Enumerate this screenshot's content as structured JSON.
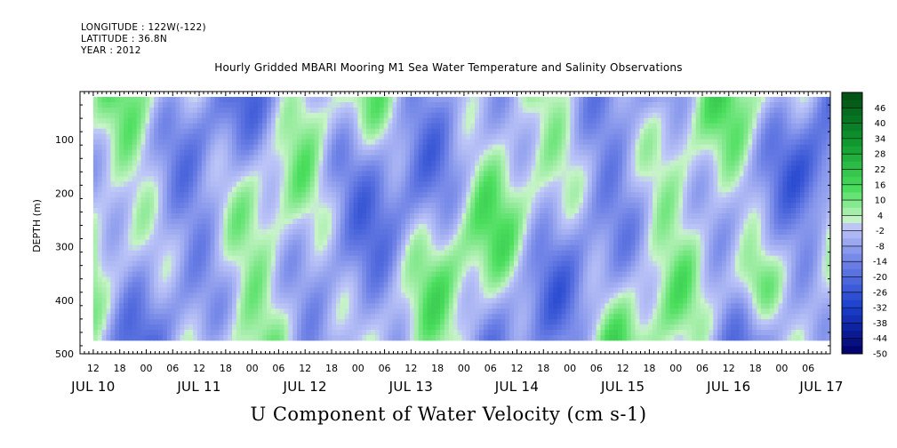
{
  "header": {
    "longitude": "LONGITUDE : 122W(-122)",
    "latitude": "LATITUDE : 36.8N",
    "year": "YEAR : 2012"
  },
  "chart_title": "Hourly Gridded MBARI Mooring M1 Sea Water Temperature and Salinity Observations",
  "main_title": "U Component of Water Velocity (cm s-1)",
  "chart_data": {
    "type": "heatmap",
    "xlabel": "",
    "ylabel": "DEPTH (m)",
    "y_ticks": [
      100,
      200,
      300,
      400,
      500
    ],
    "y_reversed": true,
    "ylim": [
      500,
      10
    ],
    "data_depth_range": [
      20,
      475
    ],
    "x_start": "2012-07-10T09:00",
    "x_end": "2012-07-17T11:00",
    "data_start": "2012-07-10T12:00",
    "data_end": "2012-07-17T11:00",
    "x_hour_labels": [
      "12",
      "18",
      "00",
      "06",
      "12",
      "18",
      "00",
      "06",
      "12",
      "18",
      "00",
      "06",
      "12",
      "18",
      "00",
      "06",
      "12",
      "18",
      "00",
      "06",
      "12",
      "18",
      "00",
      "06",
      "12",
      "18",
      "00",
      "06"
    ],
    "x_date_labels": [
      "JUL 10",
      "JUL 11",
      "JUL 12",
      "JUL 13",
      "JUL 14",
      "JUL 15",
      "JUL 16",
      "JUL 17"
    ],
    "colorbar": {
      "labels": [
        46,
        40,
        34,
        28,
        22,
        16,
        10,
        4,
        -2,
        -8,
        -14,
        -20,
        -26,
        -32,
        -38,
        -44,
        -50
      ],
      "range": [
        -50,
        52
      ],
      "colors": {
        "-50": "#000066",
        "-32": "#1a3ecc",
        "-14": "#6f82e6",
        "0": "#c0c8f8",
        "2": "#c8f4c8",
        "14": "#4cdf5e",
        "32": "#109a30",
        "52": "#004d14"
      }
    },
    "description_values": "U velocity field approximately between -25 and +20 cm/s"
  }
}
